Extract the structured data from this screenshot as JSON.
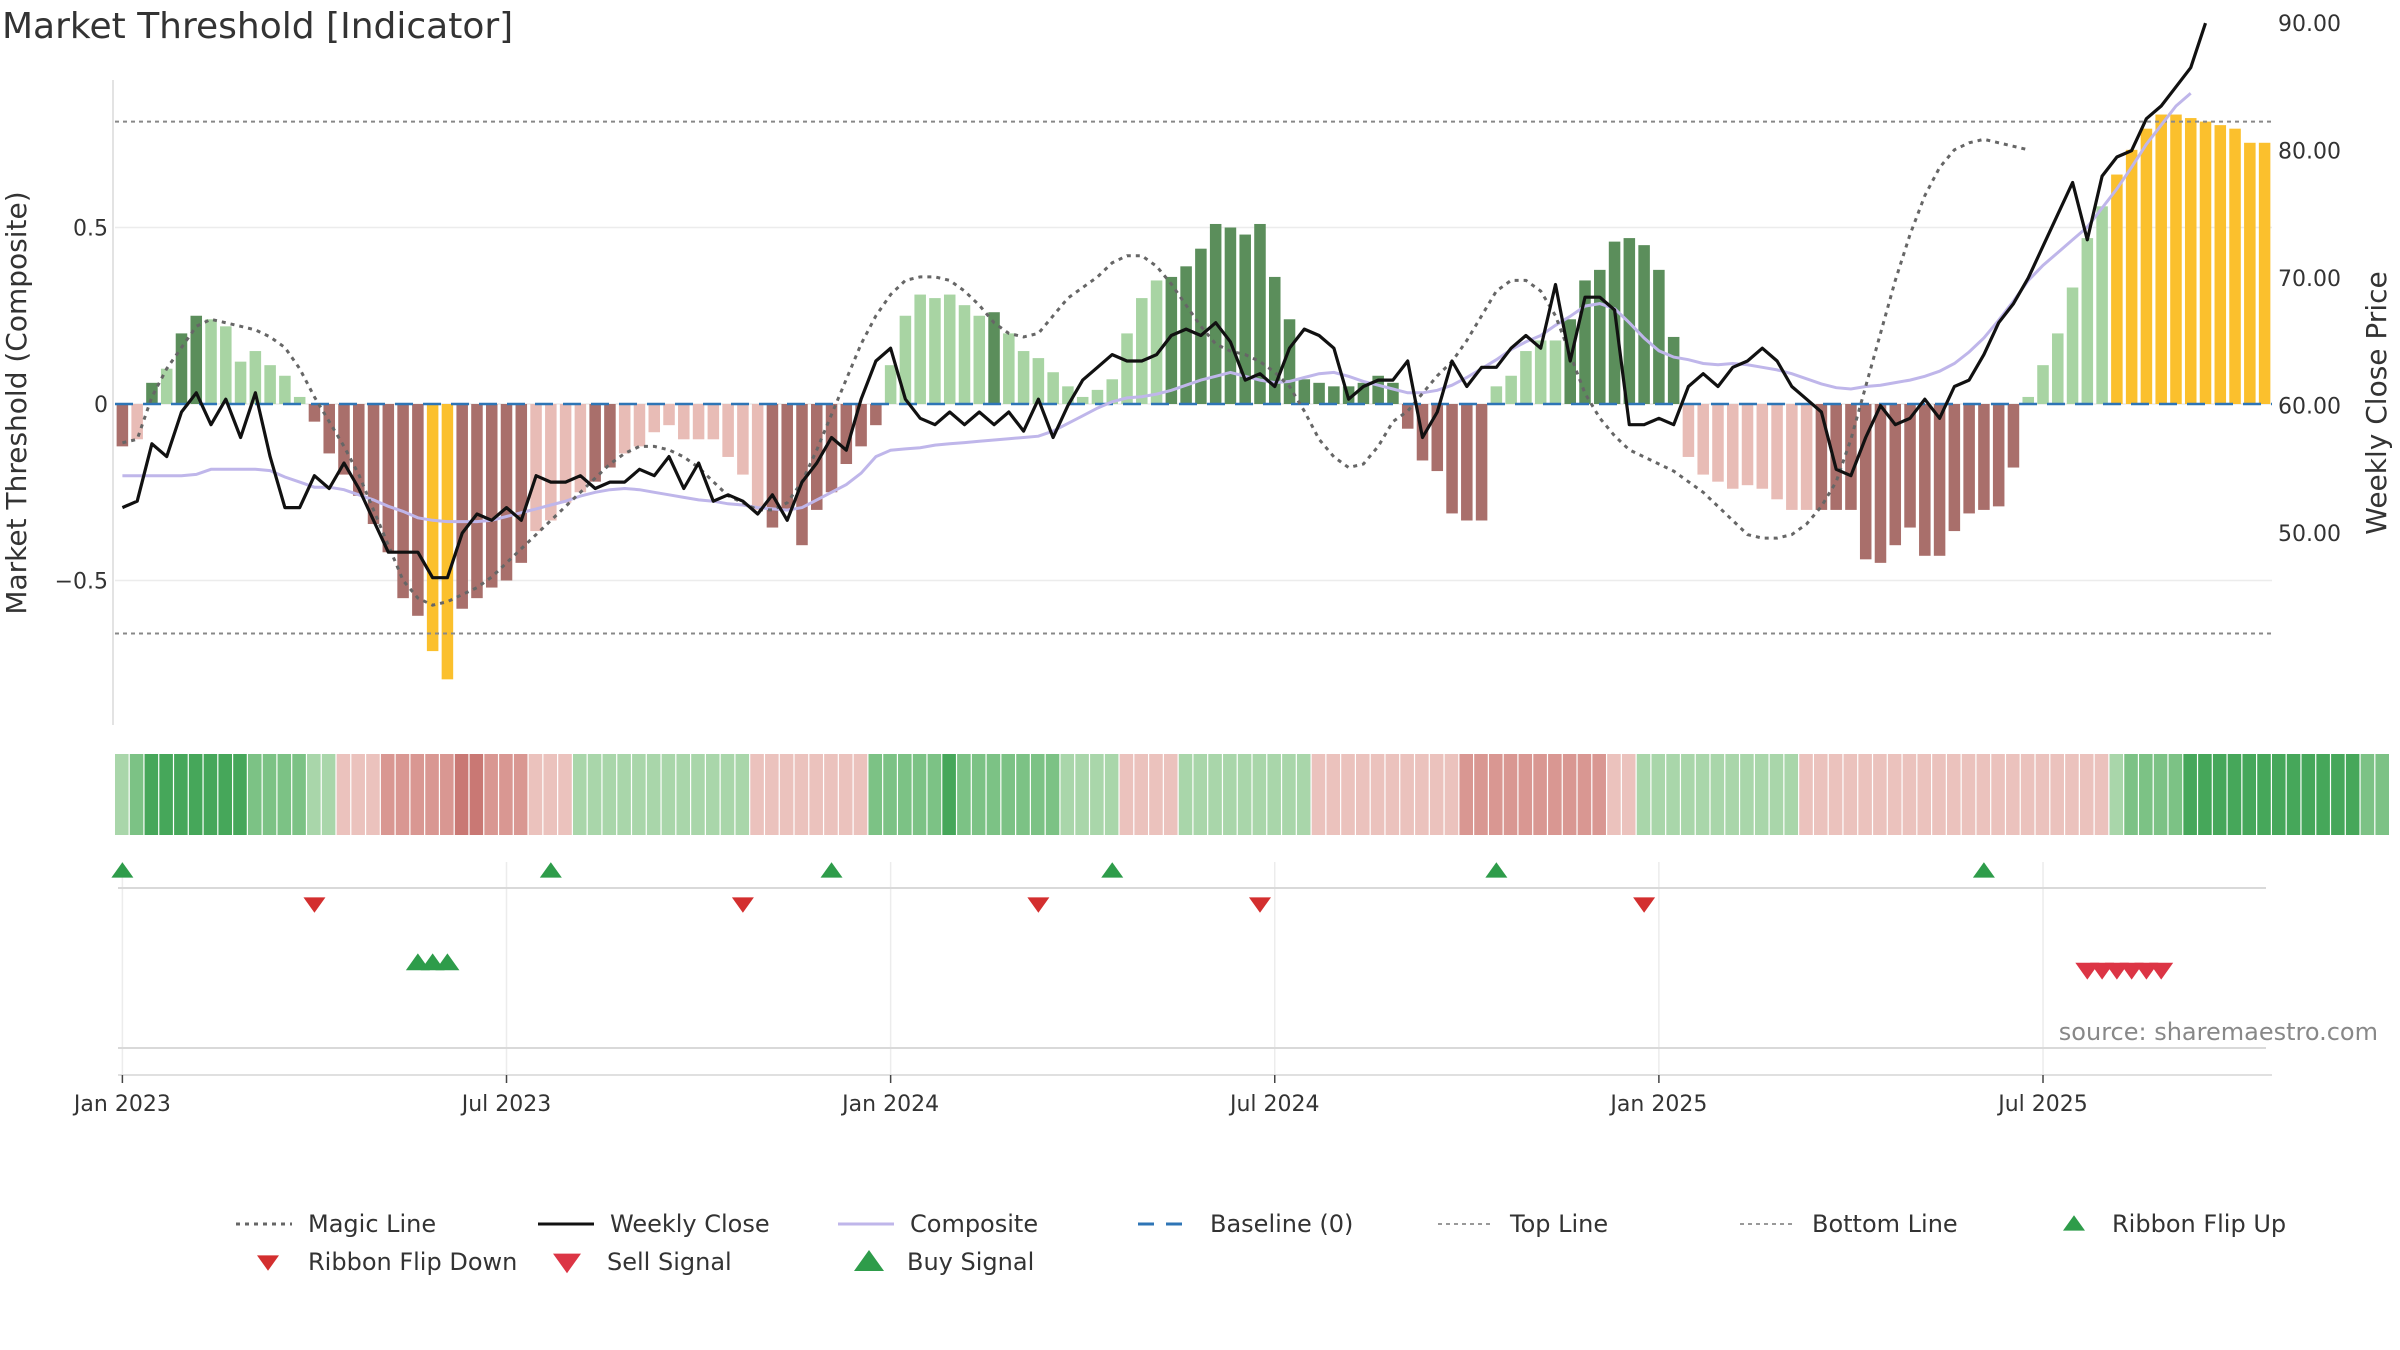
{
  "title": "Market Threshold [Indicator]",
  "source": "source: sharemaestro.com",
  "colors": {
    "bar_strong_up": "#5b8e5b",
    "bar_weak_up": "#a8d4a3",
    "bar_strong_down": "#a96f6b",
    "bar_weak_down": "#e8bcb6",
    "bar_extreme": "#fbc02d",
    "close_line": "#111111",
    "composite_line": "#bfb6ea",
    "magic_line": "#666666",
    "baseline": "#2e75b6",
    "ribbon_up": "#2e9c4a",
    "ribbon_down": "#d32f2f",
    "buy": "#2e9c4a",
    "sell": "#dc3545"
  },
  "chart_data": {
    "type": "bar",
    "title": "Market Threshold [Indicator]",
    "ylabel": "Market Threshold (Composite)",
    "y2label": "Weekly Close Price",
    "ylim": [
      -0.9,
      0.92
    ],
    "y2lim": [
      43.3,
      97
    ],
    "yticks": [
      {
        "v": 0.5,
        "label": "0.5"
      },
      {
        "v": 0,
        "label": "0"
      },
      {
        "v": -0.5,
        "label": "−0.5"
      }
    ],
    "y2ticks": [
      {
        "v": 90,
        "label": "90.00"
      },
      {
        "v": 80,
        "label": "80.00"
      },
      {
        "v": 70,
        "label": "70.00"
      },
      {
        "v": 60,
        "label": "60.00"
      },
      {
        "v": 50,
        "label": "50.00"
      }
    ],
    "xticks": [
      {
        "week": 1,
        "label": "Jan 2023"
      },
      {
        "week": 27,
        "label": "Jul 2023"
      },
      {
        "week": 53,
        "label": "Jan 2024"
      },
      {
        "week": 79,
        "label": "Jul 2024"
      },
      {
        "week": 105,
        "label": "Jan 2025"
      },
      {
        "week": 131,
        "label": "Jul 2025"
      }
    ],
    "top_line": 0.8,
    "bottom_line": -0.65,
    "baseline": 0,
    "composite": [
      -0.12,
      -0.1,
      0.06,
      0.1,
      0.2,
      0.25,
      0.24,
      0.22,
      0.12,
      0.15,
      0.11,
      0.08,
      0.02,
      -0.05,
      -0.14,
      -0.2,
      -0.26,
      -0.34,
      -0.42,
      -0.55,
      -0.6,
      -0.7,
      -0.78,
      -0.58,
      -0.55,
      -0.52,
      -0.5,
      -0.45,
      -0.36,
      -0.33,
      -0.28,
      -0.25,
      -0.22,
      -0.18,
      -0.14,
      -0.12,
      -0.08,
      -0.06,
      -0.1,
      -0.1,
      -0.1,
      -0.15,
      -0.2,
      -0.3,
      -0.35,
      -0.3,
      -0.4,
      -0.3,
      -0.25,
      -0.17,
      -0.12,
      -0.06,
      0.11,
      0.25,
      0.31,
      0.3,
      0.31,
      0.28,
      0.25,
      0.26,
      0.2,
      0.15,
      0.13,
      0.09,
      0.05,
      0.02,
      0.04,
      0.07,
      0.2,
      0.3,
      0.35,
      0.36,
      0.39,
      0.44,
      0.51,
      0.5,
      0.48,
      0.51,
      0.36,
      0.24,
      0.07,
      0.06,
      0.05,
      0.05,
      0.06,
      0.08,
      0.06,
      -0.07,
      -0.16,
      -0.19,
      -0.31,
      -0.33,
      -0.33,
      0.05,
      0.08,
      0.15,
      0.18,
      0.18,
      0.24,
      0.35,
      0.38,
      0.46,
      0.47,
      0.45,
      0.38,
      0.19,
      -0.15,
      -0.2,
      -0.22,
      -0.24,
      -0.23,
      -0.24,
      -0.27,
      -0.3,
      -0.3,
      -0.3,
      -0.3,
      -0.3,
      -0.44,
      -0.45,
      -0.4,
      -0.35,
      -0.43,
      -0.43,
      -0.36,
      -0.31,
      -0.3,
      -0.29,
      -0.18,
      0.02,
      0.11,
      0.2,
      0.33,
      0.47,
      0.56,
      0.65,
      0.72,
      0.78,
      0.82,
      0.82,
      0.81,
      0.8,
      0.79,
      0.78,
      0.74,
      0.74
    ],
    "close": [
      52.0,
      52.5,
      57.0,
      56.0,
      59.5,
      61.0,
      58.5,
      60.5,
      57.5,
      61.0,
      56.0,
      52.0,
      52.0,
      54.5,
      53.5,
      55.5,
      53.5,
      51.0,
      48.5,
      48.5,
      48.5,
      46.5,
      46.5,
      50.0,
      51.5,
      51.0,
      52.0,
      51.0,
      54.5,
      54.0,
      54.0,
      54.5,
      53.5,
      54.0,
      54.0,
      55.0,
      54.5,
      56.0,
      53.5,
      55.5,
      52.5,
      53.0,
      52.5,
      51.5,
      53.0,
      51.0,
      54.0,
      55.5,
      57.5,
      56.5,
      60.5,
      63.5,
      64.5,
      60.5,
      59.0,
      58.5,
      59.5,
      58.5,
      59.5,
      58.5,
      59.5,
      58.0,
      60.5,
      57.5,
      60.0,
      62.0,
      63.0,
      64.0,
      63.5,
      63.5,
      64.0,
      65.5,
      66.0,
      65.5,
      66.5,
      65.0,
      62.0,
      62.5,
      61.5,
      64.5,
      66.0,
      65.5,
      64.5,
      60.5,
      61.5,
      62.0,
      62.0,
      63.5,
      57.5,
      59.5,
      63.5,
      61.5,
      63.0,
      63.0,
      64.5,
      65.5,
      64.5,
      69.5,
      63.5,
      68.5,
      68.5,
      67.5,
      58.5,
      58.5,
      59.0,
      58.5,
      61.5,
      62.5,
      61.5,
      63.0,
      63.5,
      64.5,
      63.5,
      61.5,
      60.5,
      59.5,
      55.0,
      54.5,
      57.5,
      60.0,
      58.5,
      59.0,
      60.5,
      59.0,
      61.5,
      62.0,
      64.0,
      66.5,
      68.0,
      70.0,
      72.5,
      75.0,
      77.5,
      73.0,
      78.0,
      79.5,
      80.0,
      82.5,
      83.5,
      85.0,
      86.5,
      90.0
    ],
    "composite_smooth": [
      54.5,
      54.5,
      54.5,
      54.5,
      54.5,
      54.6,
      55.0,
      55.0,
      55.0,
      55.0,
      54.9,
      54.4,
      54.0,
      53.6,
      53.6,
      53.4,
      53.0,
      52.6,
      52.1,
      51.7,
      51.2,
      51.0,
      50.9,
      50.9,
      50.9,
      51.0,
      51.3,
      51.6,
      51.9,
      52.2,
      52.5,
      52.9,
      53.2,
      53.4,
      53.5,
      53.4,
      53.2,
      53.0,
      52.8,
      52.6,
      52.5,
      52.3,
      52.2,
      52.0,
      51.9,
      51.8,
      52.0,
      52.6,
      53.2,
      53.8,
      54.7,
      56.0,
      56.5,
      56.6,
      56.7,
      56.9,
      57.0,
      57.1,
      57.2,
      57.3,
      57.4,
      57.5,
      57.6,
      58.0,
      58.6,
      59.2,
      59.8,
      60.3,
      60.6,
      60.7,
      60.9,
      61.2,
      61.6,
      62.0,
      62.3,
      62.6,
      62.3,
      62.0,
      61.8,
      61.9,
      62.2,
      62.5,
      62.6,
      62.3,
      61.9,
      61.6,
      61.3,
      61.0,
      61.0,
      61.2,
      61.6,
      62.2,
      62.9,
      63.6,
      64.4,
      65.0,
      65.5,
      66.3,
      67.0,
      67.8,
      68.0,
      67.6,
      66.5,
      65.3,
      64.3,
      63.8,
      63.6,
      63.3,
      63.2,
      63.3,
      63.2,
      63.0,
      62.8,
      62.5,
      62.1,
      61.7,
      61.4,
      61.3,
      61.5,
      61.6,
      61.8,
      62.0,
      62.3,
      62.7,
      63.3,
      64.2,
      65.3,
      66.7,
      68.2,
      69.8,
      71.0,
      72.0,
      73.0,
      74.0,
      75.5,
      77.0,
      78.7,
      80.5,
      82.0,
      83.5,
      84.5
    ],
    "magic": [
      -0.11,
      -0.1,
      0.02,
      0.1,
      0.16,
      0.22,
      0.24,
      0.23,
      0.22,
      0.21,
      0.19,
      0.16,
      0.1,
      0.02,
      -0.05,
      -0.12,
      -0.2,
      -0.3,
      -0.4,
      -0.5,
      -0.55,
      -0.57,
      -0.56,
      -0.54,
      -0.52,
      -0.49,
      -0.45,
      -0.41,
      -0.37,
      -0.33,
      -0.29,
      -0.25,
      -0.21,
      -0.17,
      -0.14,
      -0.12,
      -0.12,
      -0.13,
      -0.15,
      -0.18,
      -0.22,
      -0.26,
      -0.28,
      -0.3,
      -0.3,
      -0.28,
      -0.22,
      -0.13,
      -0.03,
      0.07,
      0.17,
      0.25,
      0.31,
      0.35,
      0.36,
      0.36,
      0.35,
      0.32,
      0.28,
      0.23,
      0.2,
      0.19,
      0.2,
      0.25,
      0.3,
      0.33,
      0.36,
      0.4,
      0.42,
      0.42,
      0.39,
      0.34,
      0.28,
      0.22,
      0.17,
      0.15,
      0.14,
      0.12,
      0.09,
      0.05,
      -0.02,
      -0.1,
      -0.15,
      -0.18,
      -0.17,
      -0.12,
      -0.05,
      -0.02,
      0.03,
      0.08,
      0.12,
      0.18,
      0.25,
      0.32,
      0.35,
      0.35,
      0.32,
      0.25,
      0.14,
      0.03,
      -0.04,
      -0.09,
      -0.13,
      -0.15,
      -0.17,
      -0.19,
      -0.22,
      -0.25,
      -0.29,
      -0.33,
      -0.37,
      -0.38,
      -0.38,
      -0.37,
      -0.34,
      -0.29,
      -0.22,
      -0.1,
      0.05,
      0.2,
      0.35,
      0.48,
      0.59,
      0.67,
      0.72,
      0.74,
      0.75,
      0.74,
      0.73,
      0.72
    ],
    "ribbon": [
      1,
      2,
      3,
      3,
      3,
      3,
      3,
      3,
      3,
      2,
      2,
      2,
      2,
      1,
      1,
      -1,
      -1,
      -1,
      -2,
      -2,
      -2,
      -2,
      -2,
      -3,
      -3,
      -2,
      -2,
      -2,
      -1,
      -1,
      -1,
      1,
      1,
      1,
      1,
      1,
      1,
      1,
      1,
      1,
      1,
      1,
      1,
      -1,
      -1,
      -1,
      -1,
      -1,
      -1,
      -1,
      -1,
      2,
      2,
      2,
      2,
      2,
      3,
      2,
      2,
      2,
      2,
      2,
      2,
      2,
      1,
      1,
      1,
      1,
      -1,
      -1,
      -1,
      -1,
      1,
      1,
      1,
      1,
      1,
      1,
      1,
      1,
      1,
      -1,
      -1,
      -1,
      -1,
      -1,
      -1,
      -1,
      -1,
      -1,
      -1,
      -2,
      -2,
      -2,
      -2,
      -2,
      -2,
      -2,
      -2,
      -2,
      -2,
      -1,
      -1,
      1,
      1,
      1,
      1,
      1,
      1,
      1,
      1,
      1,
      1,
      1,
      -1,
      -1,
      -1,
      -1,
      -1,
      -1,
      -1,
      -1,
      -1,
      -1,
      -1,
      -1,
      -1,
      -1,
      -1,
      -1,
      -1,
      -1,
      -1,
      -1,
      -1,
      1,
      2,
      2,
      2,
      2,
      3,
      3,
      3,
      3,
      3,
      3,
      3,
      3,
      3,
      3,
      3,
      3,
      2,
      2
    ],
    "ribbon_flip_up_weeks": [
      1,
      30,
      49,
      68,
      94,
      127
    ],
    "ribbon_flip_down_weeks": [
      14,
      43,
      63,
      78,
      104
    ],
    "buy_signal_weeks": [
      21,
      22,
      23
    ],
    "sell_signal_weeks": [
      134,
      135,
      136,
      137,
      138,
      139
    ],
    "legend": [
      "Magic Line",
      "Weekly Close",
      "Composite",
      "Baseline (0)",
      "Top Line",
      "Bottom Line",
      "Ribbon Flip Up",
      "Ribbon Flip Down",
      "Sell Signal",
      "Buy Signal"
    ]
  }
}
